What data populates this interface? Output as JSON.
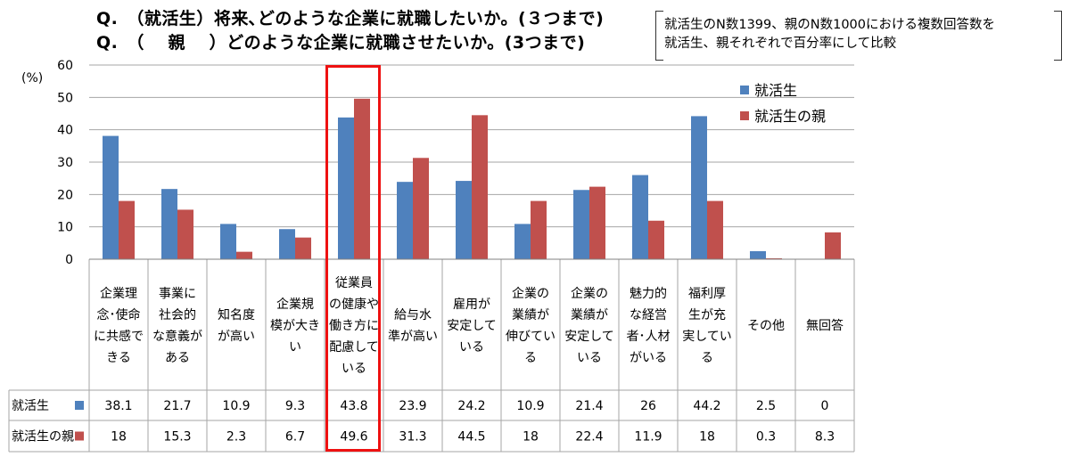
{
  "header": {
    "title_line1": "Q.　（就活生）将来､どのような企業に就職したいか。(３つまで)",
    "title_line2": "Q.　（　 親　 ）どのような企業に就職させたいか。(3つまで)",
    "note_line1": "就活生のN数1399、親のN数1000における複数回答数を",
    "note_line2": "就活生、親それぞれで百分率にして比較"
  },
  "chart_data": {
    "type": "bar",
    "title": "",
    "xlabel": "",
    "ylabel": "(%)",
    "ylim": [
      0,
      60
    ],
    "yticks": [
      0,
      10,
      20,
      30,
      40,
      50,
      60
    ],
    "grid": true,
    "legend_position": "top-right",
    "categories": [
      [
        "企業理",
        "念･使命",
        "に共感で",
        "きる"
      ],
      [
        "事業に",
        "社会的",
        "な意義が",
        "ある"
      ],
      [
        "知名度",
        "が高い"
      ],
      [
        "企業規",
        "模が大き",
        "い"
      ],
      [
        "従業員",
        "の健康や",
        "働き方に",
        "配慮して",
        "いる"
      ],
      [
        "給与水",
        "準が高い"
      ],
      [
        "雇用が",
        "安定して",
        "いる"
      ],
      [
        "企業の",
        "業績が",
        "伸びてい",
        "る"
      ],
      [
        "企業の",
        "業績が",
        "安定して",
        "いる"
      ],
      [
        "魅力的",
        "な経営",
        "者･人材",
        "がいる"
      ],
      [
        "福利厚",
        "生が充",
        "実してい",
        "る"
      ],
      [
        "その他"
      ],
      [
        "無回答"
      ]
    ],
    "series": [
      {
        "name": "就活生",
        "color": "#4f81bd",
        "values": [
          38.1,
          21.7,
          10.9,
          9.3,
          43.8,
          23.9,
          24.2,
          10.9,
          21.4,
          26,
          44.2,
          2.5,
          0
        ]
      },
      {
        "name": "就活生の親",
        "color": "#c0504d",
        "values": [
          18,
          15.3,
          2.3,
          6.7,
          49.6,
          31.3,
          44.5,
          18,
          22.4,
          11.9,
          18,
          0.3,
          8.3
        ]
      }
    ],
    "table_values": [
      [
        "38.1",
        "21.7",
        "10.9",
        "9.3",
        "43.8",
        "23.9",
        "24.2",
        "10.9",
        "21.4",
        "26",
        "44.2",
        "2.5",
        "0"
      ],
      [
        "18",
        "15.3",
        "2.3",
        "6.7",
        "49.6",
        "31.3",
        "44.5",
        "18",
        "22.4",
        "11.9",
        "18",
        "0.3",
        "8.3"
      ]
    ],
    "highlight_category_index": 4,
    "highlight_color": "#ee1111"
  }
}
